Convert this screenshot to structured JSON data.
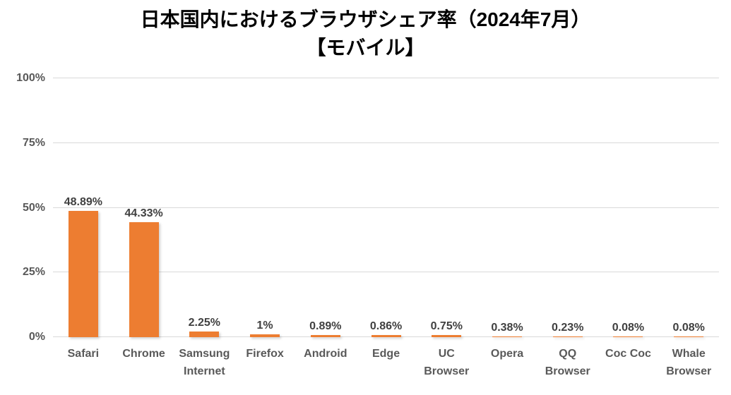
{
  "title": {
    "line1": "日本国内におけるブラウザシェア率（2024年7月）",
    "line2": "【モバイル】"
  },
  "chart_data": {
    "type": "bar",
    "title": "日本国内におけるブラウザシェア率（2024年7月）【モバイル】",
    "categories": [
      "Safari",
      "Chrome",
      "Samsung Internet",
      "Firefox",
      "Android",
      "Edge",
      "UC Browser",
      "Opera",
      "QQ Browser",
      "Coc Coc",
      "Whale Browser"
    ],
    "values": [
      48.89,
      44.33,
      2.25,
      1,
      0.89,
      0.86,
      0.75,
      0.38,
      0.23,
      0.08,
      0.08
    ],
    "value_labels": [
      "48.89%",
      "44.33%",
      "2.25%",
      "1%",
      "0.89%",
      "0.86%",
      "0.75%",
      "0.38%",
      "0.23%",
      "0.08%",
      "0.08%"
    ],
    "xlabel": "",
    "ylabel": "",
    "ylim": [
      0,
      100
    ],
    "yticks": [
      0,
      25,
      50,
      75,
      100
    ],
    "ytick_labels": [
      "0%",
      "25%",
      "50%",
      "75%",
      "100%"
    ],
    "grid": true,
    "legend": false,
    "bar_color": "#ED7D31",
    "gridline_color": "#D9D9D9",
    "axis_label_color": "#595959",
    "value_label_color": "#404040"
  }
}
